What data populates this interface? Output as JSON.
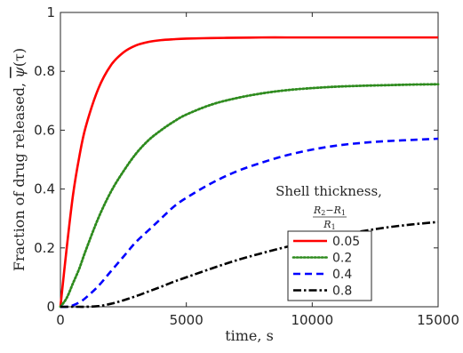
{
  "chart_data": {
    "type": "line",
    "title": "",
    "xlabel": "time, s",
    "ylabel": "Fraction of drug released, ψ̄(τ)",
    "ylabel_text": "Fraction of drug released, ",
    "ylabel_symbol": "ψ",
    "ylabel_arg": "(τ)",
    "xlim": [
      0,
      15000
    ],
    "ylim": [
      0,
      1
    ],
    "xticks": [
      0,
      5000,
      10000,
      15000
    ],
    "yticks": [
      0,
      0.2,
      0.4,
      0.6,
      0.8,
      1
    ],
    "xtick_labels": [
      "0",
      "5000",
      "10000",
      "15000"
    ],
    "ytick_labels": [
      "0",
      "0.2",
      "0.4",
      "0.6",
      "0.8",
      "1"
    ],
    "grid": false,
    "legend": {
      "title_line1": "Shell thickness,",
      "title_num_a": "R",
      "title_num_a_sub": "2",
      "title_num_op": "−",
      "title_num_b": "R",
      "title_num_b_sub": "1",
      "title_den": "R",
      "title_den_sub": "1",
      "placement": "bottom-right"
    },
    "x": [
      0,
      250,
      500,
      750,
      1000,
      1500,
      2000,
      2500,
      3000,
      3500,
      4000,
      4500,
      5000,
      6000,
      7000,
      8000,
      9000,
      10000,
      11000,
      12000,
      13000,
      14000,
      15000
    ],
    "series": [
      {
        "name": "0.05",
        "color": "#ff0000",
        "style": "solid",
        "values": [
          0,
          0.2,
          0.38,
          0.51,
          0.61,
          0.74,
          0.82,
          0.864,
          0.888,
          0.9,
          0.906,
          0.909,
          0.911,
          0.913,
          0.914,
          0.915,
          0.915,
          0.915,
          0.915,
          0.915,
          0.915,
          0.915,
          0.915
        ]
      },
      {
        "name": "0.2",
        "color": "#2e8b1e",
        "style": "dotted",
        "values": [
          0,
          0.03,
          0.08,
          0.13,
          0.19,
          0.3,
          0.39,
          0.46,
          0.52,
          0.566,
          0.6,
          0.629,
          0.653,
          0.687,
          0.709,
          0.725,
          0.736,
          0.743,
          0.748,
          0.751,
          0.753,
          0.755,
          0.756
        ]
      },
      {
        "name": "0.4",
        "color": "#0000ff",
        "style": "dashed",
        "values": [
          0,
          0,
          0.005,
          0.015,
          0.03,
          0.07,
          0.12,
          0.17,
          0.22,
          0.26,
          0.3,
          0.34,
          0.37,
          0.42,
          0.46,
          0.49,
          0.515,
          0.534,
          0.548,
          0.557,
          0.563,
          0.567,
          0.571
        ]
      },
      {
        "name": "0.8",
        "color": "#000000",
        "style": "dashdot",
        "values": [
          0,
          0,
          0,
          0,
          0,
          0.002,
          0.01,
          0.022,
          0.036,
          0.052,
          0.068,
          0.085,
          0.1,
          0.13,
          0.158,
          0.182,
          0.204,
          0.224,
          0.242,
          0.257,
          0.27,
          0.28,
          0.288
        ]
      }
    ]
  }
}
